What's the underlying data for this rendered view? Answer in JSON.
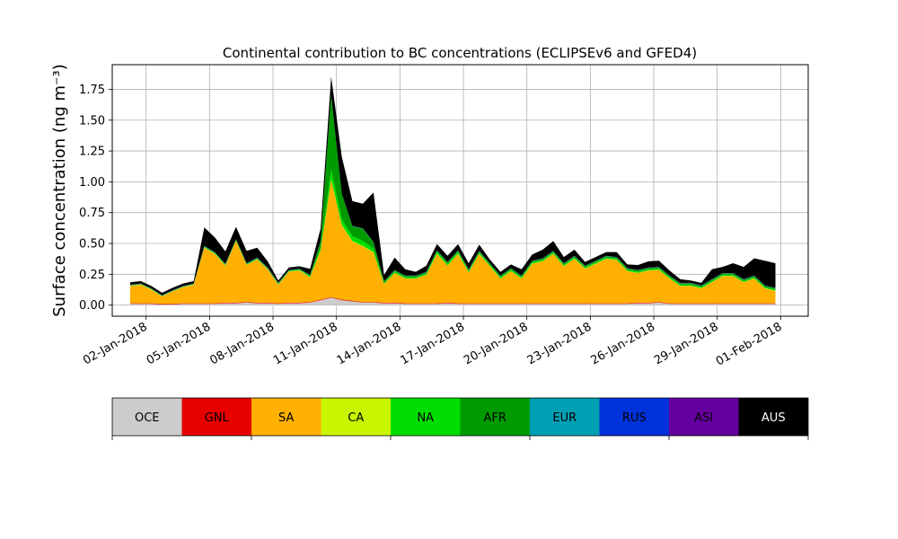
{
  "chart_data": {
    "type": "area",
    "stacked": true,
    "title": "Continental contribution to BC concentrations (ECLIPSEv6 and GFED4)",
    "ylabel": "Surface concentration (ng m⁻³)",
    "xlabel": "",
    "ylim": [
      -0.09,
      1.95
    ],
    "xlim_days": [
      -1.6,
      31.3
    ],
    "x_reference_date": "02-Jan-2018",
    "grid": true,
    "yticks": [
      "0.00",
      "0.25",
      "0.50",
      "0.75",
      "1.00",
      "1.25",
      "1.50",
      "1.75"
    ],
    "ytick_values": [
      0.0,
      0.25,
      0.5,
      0.75,
      1.0,
      1.25,
      1.5,
      1.75
    ],
    "xticks": [
      "02-Jan-2018",
      "05-Jan-2018",
      "08-Jan-2018",
      "11-Jan-2018",
      "14-Jan-2018",
      "17-Jan-2018",
      "20-Jan-2018",
      "23-Jan-2018",
      "26-Jan-2018",
      "29-Jan-2018",
      "01-Feb-2018"
    ],
    "x": [
      "01-Jan-2018 06:00",
      "01-Jan-2018 18:00",
      "02-Jan-2018 06:00",
      "02-Jan-2018 18:00",
      "03-Jan-2018 06:00",
      "03-Jan-2018 18:00",
      "04-Jan-2018 06:00",
      "04-Jan-2018 18:00",
      "05-Jan-2018 06:00",
      "05-Jan-2018 18:00",
      "06-Jan-2018 06:00",
      "06-Jan-2018 18:00",
      "07-Jan-2018 06:00",
      "07-Jan-2018 18:00",
      "08-Jan-2018 06:00",
      "08-Jan-2018 18:00",
      "09-Jan-2018 06:00",
      "09-Jan-2018 18:00",
      "10-Jan-2018 06:00",
      "10-Jan-2018 18:00",
      "11-Jan-2018 06:00",
      "11-Jan-2018 18:00",
      "12-Jan-2018 06:00",
      "12-Jan-2018 18:00",
      "13-Jan-2018 06:00",
      "13-Jan-2018 18:00",
      "14-Jan-2018 06:00",
      "14-Jan-2018 18:00",
      "15-Jan-2018 06:00",
      "15-Jan-2018 18:00",
      "16-Jan-2018 06:00",
      "16-Jan-2018 18:00",
      "17-Jan-2018 06:00",
      "17-Jan-2018 18:00",
      "18-Jan-2018 06:00",
      "18-Jan-2018 18:00",
      "19-Jan-2018 06:00",
      "19-Jan-2018 18:00",
      "20-Jan-2018 06:00",
      "20-Jan-2018 18:00",
      "21-Jan-2018 06:00",
      "21-Jan-2018 18:00",
      "22-Jan-2018 06:00",
      "22-Jan-2018 18:00",
      "23-Jan-2018 06:00",
      "23-Jan-2018 18:00",
      "24-Jan-2018 06:00",
      "24-Jan-2018 18:00",
      "25-Jan-2018 06:00",
      "25-Jan-2018 18:00",
      "26-Jan-2018 06:00",
      "26-Jan-2018 18:00",
      "27-Jan-2018 06:00",
      "27-Jan-2018 18:00",
      "28-Jan-2018 06:00",
      "28-Jan-2018 18:00",
      "29-Jan-2018 06:00",
      "29-Jan-2018 18:00",
      "30-Jan-2018 06:00",
      "30-Jan-2018 18:00",
      "31-Jan-2018 06:00",
      "31-Jan-2018 18:00"
    ],
    "series": [
      {
        "name": "OCE",
        "color": "#cccccc",
        "values": [
          0.01,
          0.01,
          0.01,
          0.005,
          0.005,
          0.01,
          0.01,
          0.01,
          0.01,
          0.015,
          0.015,
          0.02,
          0.015,
          0.015,
          0.01,
          0.015,
          0.015,
          0.02,
          0.04,
          0.06,
          0.04,
          0.03,
          0.02,
          0.02,
          0.015,
          0.015,
          0.01,
          0.01,
          0.01,
          0.01,
          0.015,
          0.01,
          0.01,
          0.01,
          0.01,
          0.01,
          0.01,
          0.01,
          0.01,
          0.01,
          0.01,
          0.01,
          0.01,
          0.01,
          0.01,
          0.01,
          0.01,
          0.01,
          0.015,
          0.015,
          0.02,
          0.01,
          0.01,
          0.01,
          0.01,
          0.01,
          0.01,
          0.01,
          0.01,
          0.01,
          0.01,
          0.01
        ]
      },
      {
        "name": "GNL",
        "color": "#e60000",
        "values": [
          0.005,
          0.005,
          0.005,
          0.005,
          0.005,
          0.005,
          0.005,
          0.005,
          0.005,
          0.005,
          0.005,
          0.005,
          0.005,
          0.005,
          0.005,
          0.005,
          0.005,
          0.005,
          0.005,
          0.005,
          0.005,
          0.005,
          0.005,
          0.005,
          0.005,
          0.005,
          0.005,
          0.005,
          0.005,
          0.005,
          0.005,
          0.005,
          0.005,
          0.005,
          0.005,
          0.005,
          0.005,
          0.005,
          0.005,
          0.005,
          0.005,
          0.005,
          0.005,
          0.005,
          0.005,
          0.005,
          0.005,
          0.005,
          0.005,
          0.005,
          0.005,
          0.005,
          0.005,
          0.005,
          0.005,
          0.005,
          0.005,
          0.005,
          0.005,
          0.005,
          0.005,
          0.005
        ]
      },
      {
        "name": "SA",
        "color": "#ffb000",
        "values": [
          0.14,
          0.15,
          0.11,
          0.06,
          0.1,
          0.13,
          0.15,
          0.45,
          0.4,
          0.3,
          0.5,
          0.3,
          0.35,
          0.27,
          0.15,
          0.25,
          0.26,
          0.2,
          0.4,
          0.95,
          0.6,
          0.48,
          0.45,
          0.4,
          0.15,
          0.24,
          0.2,
          0.2,
          0.23,
          0.4,
          0.3,
          0.4,
          0.25,
          0.4,
          0.3,
          0.2,
          0.26,
          0.2,
          0.32,
          0.34,
          0.4,
          0.3,
          0.36,
          0.28,
          0.32,
          0.36,
          0.35,
          0.26,
          0.24,
          0.26,
          0.26,
          0.2,
          0.14,
          0.14,
          0.12,
          0.17,
          0.22,
          0.22,
          0.17,
          0.2,
          0.12,
          0.1
        ]
      },
      {
        "name": "CA",
        "color": "#c8f500",
        "values": [
          0.002,
          0.002,
          0.002,
          0.002,
          0.002,
          0.002,
          0.002,
          0.002,
          0.002,
          0.002,
          0.002,
          0.002,
          0.002,
          0.002,
          0.002,
          0.002,
          0.002,
          0.002,
          0.002,
          0.005,
          0.005,
          0.005,
          0.005,
          0.005,
          0.002,
          0.002,
          0.002,
          0.002,
          0.002,
          0.002,
          0.002,
          0.002,
          0.002,
          0.002,
          0.002,
          0.002,
          0.002,
          0.002,
          0.002,
          0.002,
          0.002,
          0.002,
          0.002,
          0.002,
          0.002,
          0.002,
          0.002,
          0.002,
          0.002,
          0.002,
          0.002,
          0.002,
          0.002,
          0.002,
          0.002,
          0.002,
          0.002,
          0.002,
          0.002,
          0.002,
          0.002,
          0.002
        ]
      },
      {
        "name": "NA",
        "color": "#00dd00",
        "values": [
          0.003,
          0.003,
          0.003,
          0.003,
          0.003,
          0.003,
          0.003,
          0.005,
          0.005,
          0.005,
          0.005,
          0.005,
          0.005,
          0.005,
          0.005,
          0.005,
          0.005,
          0.01,
          0.02,
          0.08,
          0.05,
          0.04,
          0.04,
          0.03,
          0.01,
          0.01,
          0.01,
          0.01,
          0.01,
          0.015,
          0.015,
          0.015,
          0.01,
          0.01,
          0.01,
          0.01,
          0.01,
          0.01,
          0.01,
          0.01,
          0.01,
          0.01,
          0.01,
          0.01,
          0.01,
          0.01,
          0.01,
          0.01,
          0.01,
          0.01,
          0.01,
          0.01,
          0.01,
          0.01,
          0.01,
          0.01,
          0.01,
          0.01,
          0.01,
          0.01,
          0.01,
          0.01
        ]
      },
      {
        "name": "AFR",
        "color": "#009b00",
        "values": [
          0.002,
          0.002,
          0.002,
          0.002,
          0.002,
          0.002,
          0.002,
          0.005,
          0.005,
          0.005,
          0.005,
          0.005,
          0.005,
          0.005,
          0.005,
          0.005,
          0.005,
          0.005,
          0.05,
          0.6,
          0.2,
          0.08,
          0.1,
          0.05,
          0.01,
          0.01,
          0.01,
          0.01,
          0.01,
          0.01,
          0.01,
          0.01,
          0.01,
          0.01,
          0.01,
          0.01,
          0.01,
          0.01,
          0.01,
          0.01,
          0.01,
          0.01,
          0.01,
          0.01,
          0.01,
          0.01,
          0.01,
          0.01,
          0.01,
          0.01,
          0.01,
          0.01,
          0.01,
          0.01,
          0.01,
          0.01,
          0.01,
          0.01,
          0.01,
          0.01,
          0.01,
          0.01
        ]
      },
      {
        "name": "EUR",
        "color": "#00a0b4",
        "values": [
          0.001,
          0.001,
          0.001,
          0.001,
          0.001,
          0.001,
          0.001,
          0.001,
          0.001,
          0.001,
          0.001,
          0.001,
          0.001,
          0.001,
          0.001,
          0.001,
          0.001,
          0.001,
          0.001,
          0.001,
          0.001,
          0.001,
          0.001,
          0.001,
          0.001,
          0.001,
          0.001,
          0.001,
          0.001,
          0.001,
          0.001,
          0.001,
          0.001,
          0.001,
          0.001,
          0.001,
          0.001,
          0.001,
          0.001,
          0.001,
          0.001,
          0.001,
          0.001,
          0.001,
          0.001,
          0.001,
          0.001,
          0.001,
          0.001,
          0.001,
          0.001,
          0.001,
          0.001,
          0.001,
          0.001,
          0.001,
          0.001,
          0.001,
          0.001,
          0.001,
          0.001,
          0.001
        ]
      },
      {
        "name": "RUS",
        "color": "#0032dc",
        "values": [
          0.001,
          0.001,
          0.001,
          0.001,
          0.001,
          0.001,
          0.001,
          0.001,
          0.001,
          0.001,
          0.001,
          0.001,
          0.001,
          0.001,
          0.001,
          0.001,
          0.001,
          0.001,
          0.001,
          0.001,
          0.001,
          0.001,
          0.001,
          0.001,
          0.001,
          0.001,
          0.001,
          0.001,
          0.001,
          0.001,
          0.001,
          0.001,
          0.001,
          0.001,
          0.001,
          0.001,
          0.001,
          0.001,
          0.001,
          0.001,
          0.001,
          0.001,
          0.001,
          0.001,
          0.001,
          0.001,
          0.001,
          0.001,
          0.001,
          0.001,
          0.001,
          0.001,
          0.001,
          0.001,
          0.001,
          0.001,
          0.001,
          0.001,
          0.001,
          0.001,
          0.001,
          0.001
        ]
      },
      {
        "name": "ASI",
        "color": "#6400a0",
        "values": [
          0.001,
          0.001,
          0.001,
          0.001,
          0.001,
          0.001,
          0.001,
          0.001,
          0.001,
          0.001,
          0.001,
          0.001,
          0.001,
          0.001,
          0.001,
          0.001,
          0.001,
          0.001,
          0.001,
          0.001,
          0.001,
          0.001,
          0.001,
          0.001,
          0.001,
          0.001,
          0.001,
          0.001,
          0.001,
          0.001,
          0.001,
          0.001,
          0.001,
          0.001,
          0.001,
          0.001,
          0.001,
          0.001,
          0.001,
          0.001,
          0.001,
          0.001,
          0.001,
          0.001,
          0.001,
          0.001,
          0.001,
          0.001,
          0.001,
          0.001,
          0.001,
          0.001,
          0.001,
          0.001,
          0.001,
          0.001,
          0.001,
          0.001,
          0.001,
          0.001,
          0.001,
          0.001
        ]
      },
      {
        "name": "AUS",
        "color": "#000000",
        "values": [
          0.02,
          0.02,
          0.02,
          0.02,
          0.02,
          0.02,
          0.02,
          0.15,
          0.12,
          0.1,
          0.1,
          0.1,
          0.08,
          0.05,
          0.02,
          0.02,
          0.02,
          0.05,
          0.1,
          0.15,
          0.3,
          0.2,
          0.2,
          0.4,
          0.05,
          0.1,
          0.05,
          0.03,
          0.05,
          0.05,
          0.05,
          0.05,
          0.05,
          0.05,
          0.03,
          0.03,
          0.03,
          0.05,
          0.05,
          0.07,
          0.08,
          0.05,
          0.05,
          0.03,
          0.03,
          0.03,
          0.04,
          0.03,
          0.04,
          0.05,
          0.05,
          0.04,
          0.03,
          0.02,
          0.02,
          0.08,
          0.05,
          0.08,
          0.1,
          0.14,
          0.2,
          0.2
        ]
      }
    ],
    "legend": {
      "placement": "bottom",
      "entries": [
        "OCE",
        "GNL",
        "SA",
        "CA",
        "NA",
        "AFR",
        "EUR",
        "RUS",
        "ASI",
        "AUS"
      ],
      "text_colors": [
        "#000000",
        "#000000",
        "#000000",
        "#000000",
        "#000000",
        "#000000",
        "#000000",
        "#000000",
        "#000000",
        "#ffffff"
      ]
    }
  }
}
